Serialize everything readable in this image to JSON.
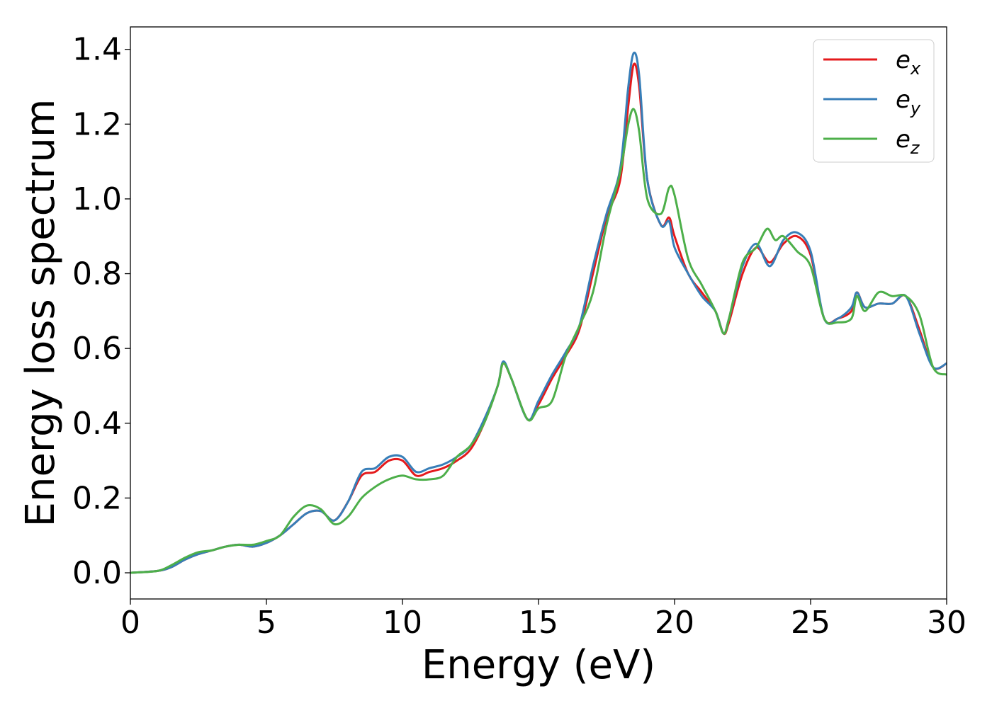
{
  "chart_data": {
    "type": "line",
    "xlabel": "Energy (eV)",
    "ylabel": "Energy loss spectrum",
    "xlim": [
      0,
      30
    ],
    "ylim": [
      -0.07,
      1.46
    ],
    "xticks": [
      0,
      5,
      10,
      15,
      20,
      25,
      30
    ],
    "yticks": [
      0.0,
      0.2,
      0.4,
      0.6,
      0.8,
      1.0,
      1.2,
      1.4
    ],
    "xtick_labels": [
      "0",
      "5",
      "10",
      "15",
      "20",
      "25",
      "30"
    ],
    "ytick_labels": [
      "0.0",
      "0.2",
      "0.4",
      "0.6",
      "0.8",
      "1.0",
      "1.2",
      "1.4"
    ],
    "grid": false,
    "legend_position": "top-right",
    "series": [
      {
        "name": "e_x",
        "legend_base": "e",
        "legend_sub": "x",
        "color": "#e41a1c",
        "x": [
          0,
          1,
          1.5,
          2,
          2.5,
          3,
          3.5,
          4,
          4.5,
          5,
          5.5,
          6,
          6.5,
          7,
          7.5,
          8,
          8.5,
          9,
          9.5,
          10,
          10.5,
          11,
          11.5,
          12,
          12.5,
          13,
          13.5,
          13.7,
          14,
          14.6,
          15,
          15.5,
          16,
          16.5,
          17,
          17.5,
          18,
          18.3,
          18.5,
          18.7,
          19,
          19.5,
          19.8,
          20,
          20.5,
          21,
          21.5,
          21.8,
          22,
          22.5,
          23,
          23.5,
          24,
          24.5,
          25,
          25.5,
          26,
          26.5,
          26.7,
          27,
          27.5,
          28,
          28.5,
          29,
          29.5,
          30
        ],
        "y": [
          0,
          0.005,
          0.015,
          0.035,
          0.05,
          0.06,
          0.07,
          0.075,
          0.07,
          0.08,
          0.1,
          0.13,
          0.16,
          0.165,
          0.14,
          0.19,
          0.26,
          0.27,
          0.3,
          0.3,
          0.26,
          0.27,
          0.28,
          0.3,
          0.33,
          0.4,
          0.5,
          0.56,
          0.52,
          0.41,
          0.45,
          0.52,
          0.58,
          0.65,
          0.8,
          0.95,
          1.05,
          1.25,
          1.36,
          1.3,
          1.05,
          0.93,
          0.95,
          0.9,
          0.8,
          0.75,
          0.7,
          0.64,
          0.67,
          0.8,
          0.87,
          0.83,
          0.88,
          0.9,
          0.85,
          0.68,
          0.68,
          0.7,
          0.75,
          0.71,
          0.72,
          0.72,
          0.74,
          0.65,
          0.55,
          0.56
        ]
      },
      {
        "name": "e_y",
        "legend_base": "e",
        "legend_sub": "y",
        "color": "#377eb8",
        "x": [
          0,
          1,
          1.5,
          2,
          2.5,
          3,
          3.5,
          4,
          4.5,
          5,
          5.5,
          6,
          6.5,
          7,
          7.5,
          8,
          8.5,
          9,
          9.5,
          10,
          10.5,
          11,
          11.5,
          12,
          12.5,
          13,
          13.5,
          13.7,
          14,
          14.6,
          15,
          15.5,
          16,
          16.5,
          17,
          17.5,
          18,
          18.3,
          18.5,
          18.7,
          19,
          19.5,
          19.8,
          20,
          20.5,
          21,
          21.5,
          21.8,
          22,
          22.5,
          23,
          23.5,
          24,
          24.5,
          25,
          25.5,
          26,
          26.5,
          26.7,
          27,
          27.5,
          28,
          28.5,
          29,
          29.5,
          30
        ],
        "y": [
          0,
          0.005,
          0.015,
          0.035,
          0.05,
          0.06,
          0.07,
          0.075,
          0.07,
          0.08,
          0.1,
          0.13,
          0.16,
          0.165,
          0.14,
          0.19,
          0.27,
          0.28,
          0.31,
          0.31,
          0.27,
          0.28,
          0.29,
          0.31,
          0.34,
          0.41,
          0.5,
          0.565,
          0.52,
          0.41,
          0.46,
          0.53,
          0.59,
          0.66,
          0.82,
          0.96,
          1.08,
          1.3,
          1.39,
          1.33,
          1.05,
          0.93,
          0.94,
          0.87,
          0.8,
          0.74,
          0.7,
          0.64,
          0.68,
          0.82,
          0.88,
          0.82,
          0.89,
          0.91,
          0.86,
          0.68,
          0.68,
          0.71,
          0.75,
          0.71,
          0.72,
          0.72,
          0.74,
          0.64,
          0.55,
          0.56
        ]
      },
      {
        "name": "e_z",
        "legend_base": "e",
        "legend_sub": "z",
        "color": "#4daf4a",
        "x": [
          0,
          1,
          1.5,
          2,
          2.5,
          3,
          3.5,
          4,
          4.5,
          5,
          5.5,
          6,
          6.5,
          7,
          7.5,
          8,
          8.5,
          9,
          9.5,
          10,
          10.5,
          11,
          11.5,
          12,
          12.5,
          13,
          13.5,
          13.7,
          14,
          14.6,
          15,
          15.5,
          16,
          16.5,
          17,
          17.5,
          18,
          18.3,
          18.5,
          18.7,
          19,
          19.5,
          19.8,
          20,
          20.5,
          21,
          21.5,
          21.8,
          22,
          22.5,
          23,
          23.4,
          23.7,
          24,
          24.5,
          25,
          25.5,
          26,
          26.5,
          26.7,
          27,
          27.5,
          28,
          28.5,
          29,
          29.5,
          30
        ],
        "y": [
          0,
          0.005,
          0.02,
          0.04,
          0.055,
          0.06,
          0.07,
          0.075,
          0.075,
          0.085,
          0.1,
          0.15,
          0.18,
          0.17,
          0.13,
          0.15,
          0.2,
          0.23,
          0.25,
          0.26,
          0.25,
          0.25,
          0.26,
          0.31,
          0.34,
          0.4,
          0.5,
          0.56,
          0.52,
          0.41,
          0.44,
          0.46,
          0.58,
          0.66,
          0.75,
          0.93,
          1.07,
          1.2,
          1.24,
          1.18,
          1.0,
          0.96,
          1.03,
          1.01,
          0.84,
          0.77,
          0.7,
          0.64,
          0.68,
          0.83,
          0.87,
          0.92,
          0.89,
          0.9,
          0.86,
          0.82,
          0.68,
          0.67,
          0.68,
          0.74,
          0.7,
          0.75,
          0.74,
          0.74,
          0.69,
          0.55,
          0.53
        ]
      }
    ]
  }
}
